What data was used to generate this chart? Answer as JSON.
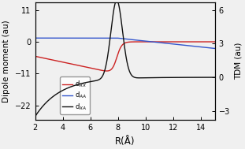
{
  "title": "",
  "xlabel": "R(Å)",
  "ylabel_left": "Dipole moment (au)",
  "ylabel_right": "TDM (au)",
  "xlim": [
    2,
    15
  ],
  "ylim_left": [
    -27,
    13.5
  ],
  "ylim_right": [
    -3.8,
    6.65
  ],
  "yticks_left": [
    -22,
    -11,
    0,
    11
  ],
  "yticks_right": [
    -3,
    0,
    3,
    6
  ],
  "xticks": [
    2,
    4,
    6,
    8,
    10,
    12,
    14
  ],
  "colors_left": [
    "#cc2222",
    "#3355cc"
  ],
  "color_right": "#111111",
  "background_color": "#f0f0f0",
  "r_crossing": 7.9,
  "r_min": 2.0,
  "r_max": 15.0,
  "n_points": 2000
}
